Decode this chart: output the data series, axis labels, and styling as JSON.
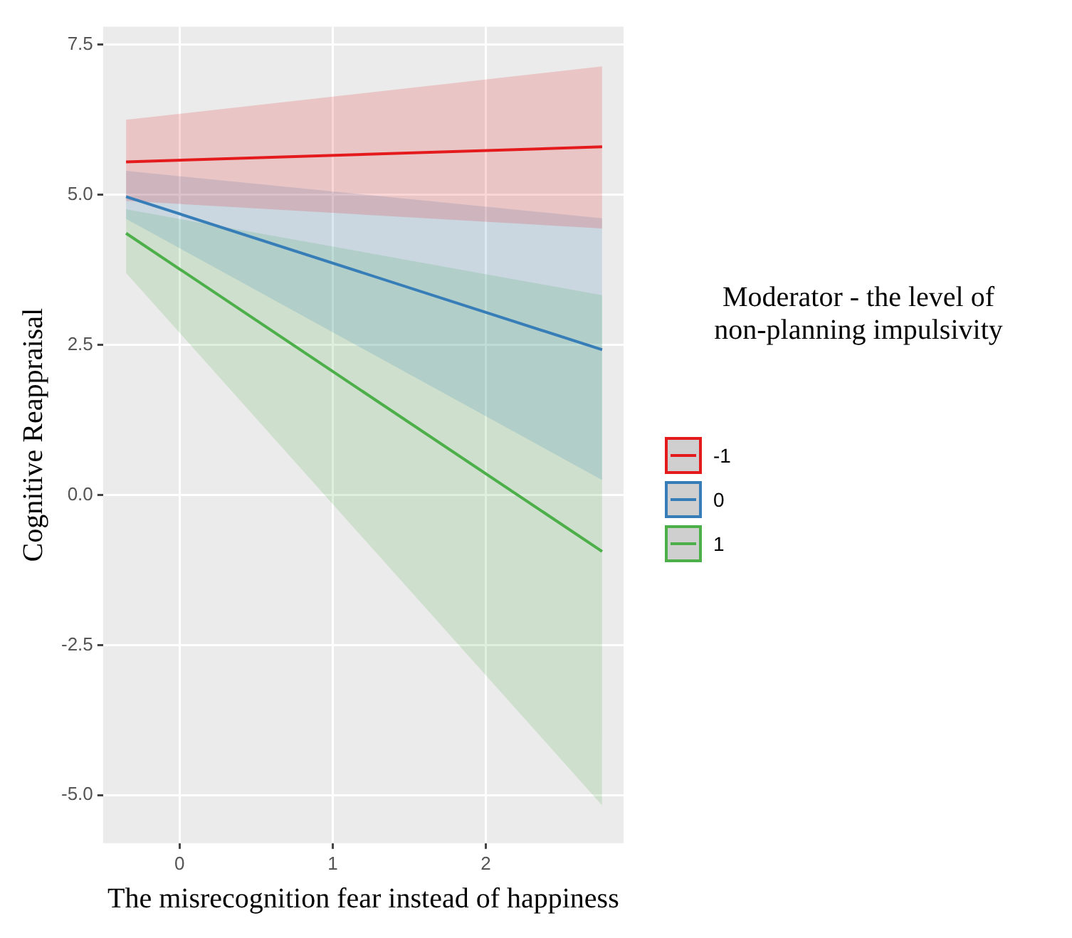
{
  "chart_data": {
    "type": "line",
    "xlabel": "The misrecognition fear instead of happiness",
    "ylabel": "Cognitive Reappraisal",
    "legend_title": "Moderator - the level of\nnon-planning impulsivity",
    "legend": "right",
    "grid": true,
    "marker": "none",
    "line_style": "solid",
    "xlim": [
      -0.5,
      2.9
    ],
    "xticks": [
      0,
      1,
      2
    ],
    "ylim": [
      -5.8,
      7.8
    ],
    "yticks": [
      {
        "value": -5,
        "label": "-5.0"
      },
      {
        "value": -2.5,
        "label": "-2.5"
      },
      {
        "value": 0,
        "label": "0.0"
      },
      {
        "value": 2.5,
        "label": "2.5"
      },
      {
        "value": 5,
        "label": "5.0"
      },
      {
        "value": 7.5,
        "label": "7.5"
      }
    ],
    "x": [
      -0.35,
      2.76
    ],
    "series": [
      {
        "name": "-1",
        "color": "#e41a1c",
        "values": [
          5.55,
          5.8
        ],
        "lower": [
          4.9,
          4.44
        ],
        "upper": [
          6.25,
          7.14
        ]
      },
      {
        "name": "0",
        "color": "#377eb8",
        "values": [
          4.97,
          2.42
        ],
        "lower": [
          4.6,
          0.25
        ],
        "upper": [
          5.4,
          4.61
        ]
      },
      {
        "name": "1",
        "color": "#4daf4a",
        "values": [
          4.36,
          -0.94
        ],
        "lower": [
          3.7,
          -5.17
        ],
        "upper": [
          4.76,
          3.33
        ]
      }
    ]
  }
}
